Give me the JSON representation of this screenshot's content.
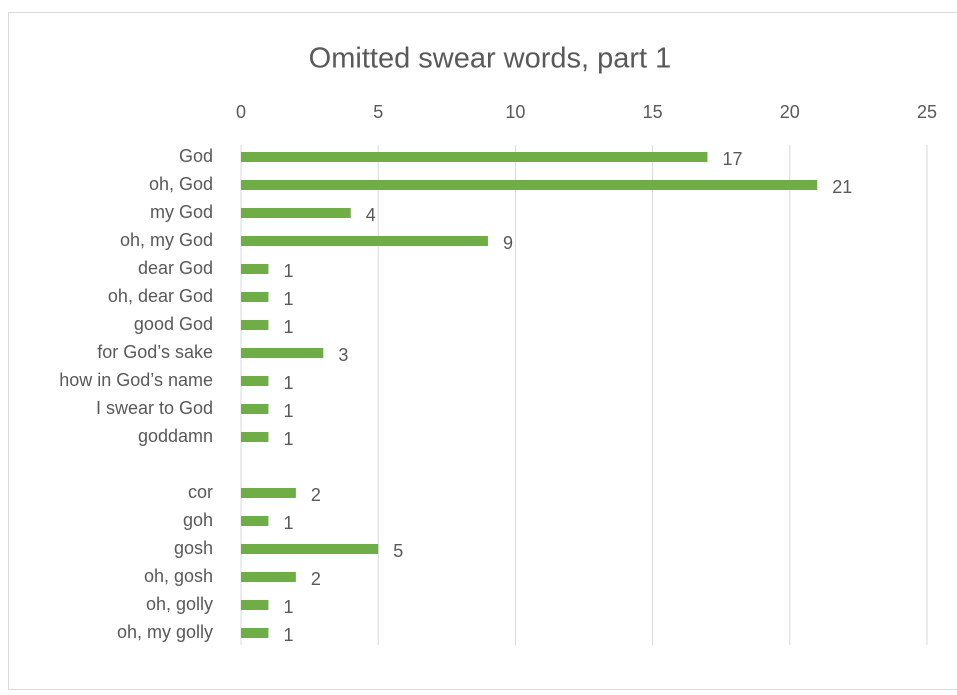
{
  "chart_data": {
    "type": "bar",
    "orientation": "horizontal",
    "title": "Omitted swear words, part 1",
    "categories": [
      "God",
      "oh, God",
      "my God",
      "oh, my God",
      "dear God",
      "oh, dear God",
      "good God",
      "for God’s sake",
      "how in God’s name",
      "I swear to God",
      "goddamn",
      null,
      "cor",
      "goh",
      "gosh",
      "oh, gosh",
      "oh, golly",
      "oh, my golly"
    ],
    "values": [
      17,
      21,
      4,
      9,
      1,
      1,
      1,
      3,
      1,
      1,
      1,
      null,
      2,
      1,
      5,
      2,
      1,
      1
    ],
    "color": "#70ad47",
    "xlim": [
      0,
      25
    ],
    "xticks": [
      0,
      5,
      10,
      15,
      20,
      25
    ],
    "grid": true
  }
}
